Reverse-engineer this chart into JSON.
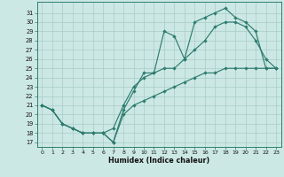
{
  "xlabel": "Humidex (Indice chaleur)",
  "bg_color": "#cce8e4",
  "grid_color": "#a8ccca",
  "line_color": "#2e7c70",
  "xlim": [
    -0.5,
    23.5
  ],
  "ylim": [
    16.5,
    32.2
  ],
  "xticks": [
    0,
    1,
    2,
    3,
    4,
    5,
    6,
    7,
    8,
    9,
    10,
    11,
    12,
    13,
    14,
    15,
    16,
    17,
    18,
    19,
    20,
    21,
    22,
    23
  ],
  "yticks": [
    17,
    18,
    19,
    20,
    21,
    22,
    23,
    24,
    25,
    26,
    27,
    28,
    29,
    30,
    31
  ],
  "line_top": [
    21.0,
    20.5,
    19.0,
    18.5,
    18.0,
    18.0,
    18.0,
    17.0,
    20.5,
    22.5,
    24.5,
    24.5,
    29.0,
    28.5,
    26.0,
    30.0,
    30.5,
    31.0,
    31.5,
    30.5,
    30.0,
    29.0,
    25.0,
    25.0
  ],
  "line_mid": [
    21.0,
    20.5,
    19.0,
    18.5,
    18.0,
    18.0,
    18.0,
    18.5,
    21.0,
    23.0,
    24.0,
    24.5,
    25.0,
    25.0,
    26.0,
    27.0,
    28.0,
    29.5,
    30.0,
    30.0,
    29.5,
    28.0,
    26.0,
    25.0
  ],
  "line_bot": [
    21.0,
    20.5,
    19.0,
    18.5,
    18.0,
    18.0,
    18.0,
    17.0,
    20.0,
    21.0,
    21.5,
    22.0,
    22.5,
    23.0,
    23.5,
    24.0,
    24.5,
    24.5,
    25.0,
    25.0,
    25.0,
    25.0,
    25.0,
    25.0
  ]
}
